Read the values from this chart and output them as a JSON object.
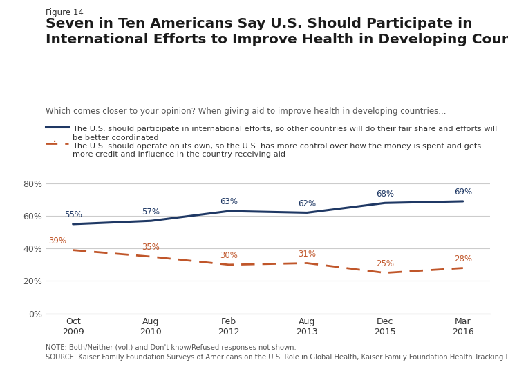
{
  "figure_label": "Figure 14",
  "title": "Seven in Ten Americans Say U.S. Should Participate in\nInternational Efforts to Improve Health in Developing Countries",
  "subtitle": "Which comes closer to your opinion? When giving aid to improve health in developing countries...",
  "legend_line1": "The U.S. should participate in international efforts, so other countries will do their fair share and efforts will\nbe better coordinated",
  "legend_line2": "The U.S. should operate on its own, so the U.S. has more control over how the money is spent and gets\nmore credit and influence in the country receiving aid",
  "x_labels": [
    "Oct\n2009",
    "Aug\n2010",
    "Feb\n2012",
    "Aug\n2013",
    "Dec\n2015",
    "Mar\n2016"
  ],
  "x_positions": [
    0,
    1,
    2,
    3,
    4,
    5
  ],
  "line1_values": [
    55,
    57,
    63,
    62,
    68,
    69
  ],
  "line2_values": [
    39,
    35,
    30,
    31,
    25,
    28
  ],
  "line1_labels": [
    "55%",
    "57%",
    "63%",
    "62%",
    "68%",
    "69%"
  ],
  "line2_labels": [
    "39%",
    "35%",
    "30%",
    "31%",
    "25%",
    "28%"
  ],
  "line1_color": "#1f3864",
  "line2_color": "#c0562a",
  "ylim": [
    0,
    90
  ],
  "yticks": [
    0,
    20,
    40,
    60,
    80
  ],
  "ytick_labels": [
    "0%",
    "20%",
    "40%",
    "60%",
    "80%"
  ],
  "note_text": "NOTE: Both/Neither (vol.) and Don't know/Refused responses not shown.\nSOURCE: Kaiser Family Foundation Surveys of Americans on the U.S. Role in Global Health, Kaiser Family Foundation Health Tracking Polls",
  "background_color": "#ffffff",
  "logo_bg": "#1f3864"
}
